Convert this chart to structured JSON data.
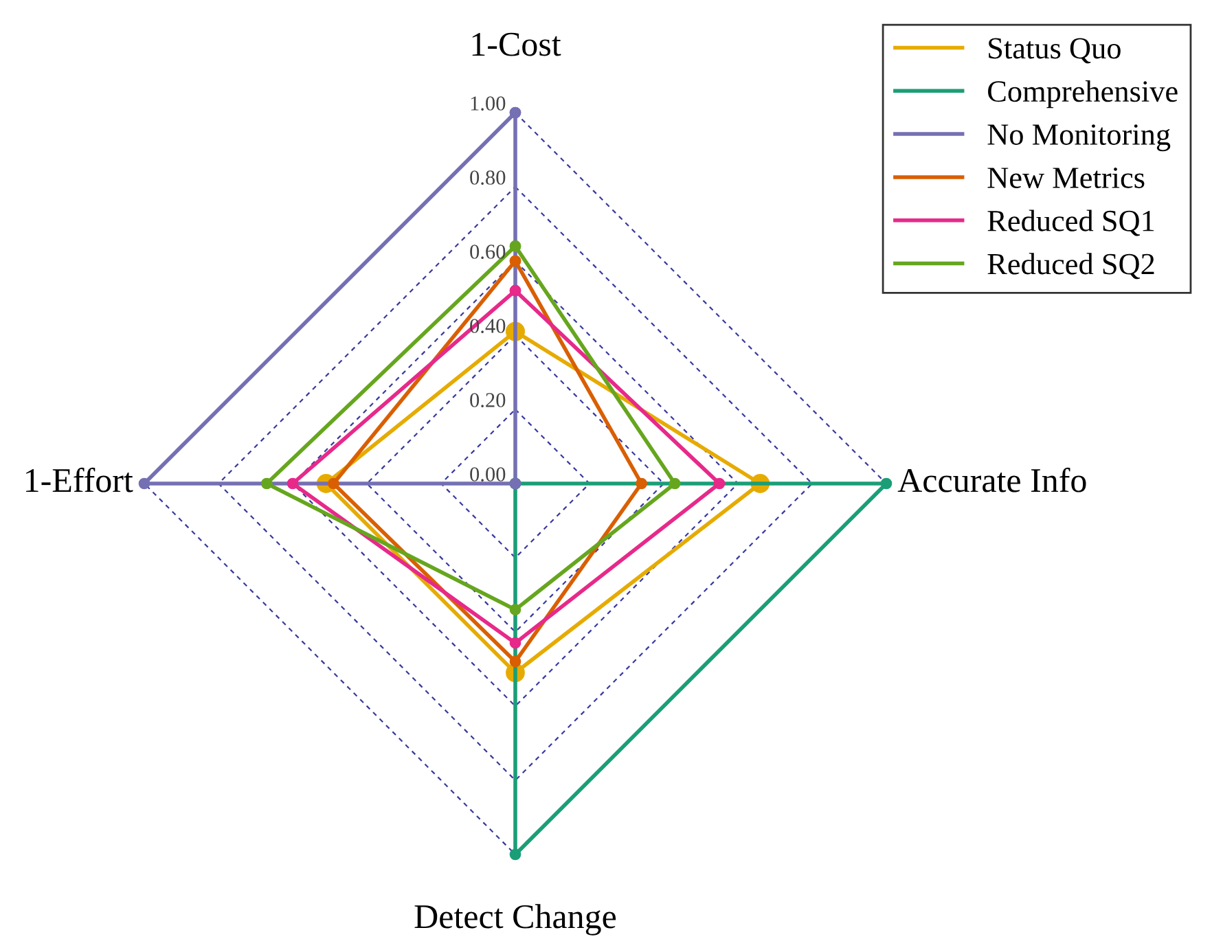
{
  "chart_data": {
    "type": "radar",
    "categories": [
      "1-Cost",
      "Accurate Info",
      "Detect Change",
      "1-Effort"
    ],
    "ylim": [
      0,
      1
    ],
    "yticks": [
      {
        "value": 0,
        "label": "0.00"
      },
      {
        "value": 0.2,
        "label": "0.20"
      },
      {
        "value": 0.4,
        "label": "0.40"
      },
      {
        "value": 0.6,
        "label": "0.60"
      },
      {
        "value": 0.8,
        "label": "0.80"
      },
      {
        "value": 1,
        "label": "1.00"
      }
    ],
    "grid": true,
    "legend": "top right",
    "marker": "circle",
    "line_style": "solid",
    "series": [
      {
        "name": "Status Quo",
        "color": "#e6ab02",
        "values": [
          0.41,
          0.66,
          0.51,
          0.51
        ]
      },
      {
        "name": "Comprehensive",
        "color": "#1b9e77",
        "values": [
          0,
          1,
          1,
          0
        ]
      },
      {
        "name": "No Monitoring",
        "color": "#7570b3",
        "values": [
          1,
          0,
          0,
          1
        ]
      },
      {
        "name": "New Metrics",
        "color": "#d95f02",
        "values": [
          0.6,
          0.34,
          0.48,
          0.49
        ]
      },
      {
        "name": "Reduced SQ1",
        "color": "#e7298a",
        "values": [
          0.52,
          0.55,
          0.43,
          0.6
        ]
      },
      {
        "name": "Reduced SQ2",
        "color": "#66a61e",
        "values": [
          0.64,
          0.43,
          0.34,
          0.67
        ]
      }
    ]
  }
}
